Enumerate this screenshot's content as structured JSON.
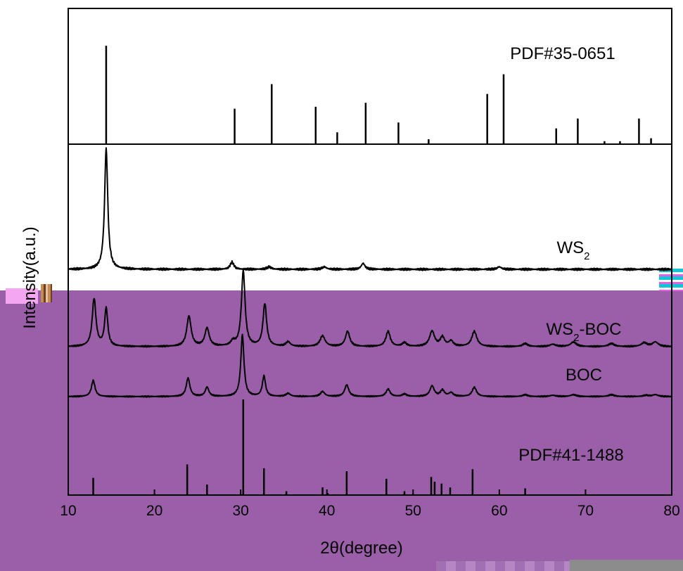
{
  "chart_data": {
    "type": "line",
    "xlabel": "2θ(degree)",
    "ylabel": "Intensity(a.u.)",
    "xlim": [
      10,
      80
    ],
    "xticks": [
      10,
      20,
      30,
      40,
      50,
      60,
      70,
      80
    ],
    "grid": false,
    "legend": "none",
    "panels": [
      {
        "label": "PDF#35-0651",
        "kind": "reference",
        "peaks": [
          [
            14.4,
            1.0
          ],
          [
            29.3,
            0.36
          ],
          [
            33.6,
            0.61
          ],
          [
            38.7,
            0.38
          ],
          [
            41.2,
            0.12
          ],
          [
            44.5,
            0.42
          ],
          [
            48.3,
            0.22
          ],
          [
            51.8,
            0.05
          ],
          [
            58.6,
            0.51
          ],
          [
            60.5,
            0.71
          ],
          [
            66.6,
            0.16
          ],
          [
            69.1,
            0.26
          ],
          [
            72.2,
            0.03
          ],
          [
            74.0,
            0.03
          ],
          [
            76.2,
            0.26
          ],
          [
            77.6,
            0.06
          ]
        ]
      },
      {
        "label": "WS",
        "label_sub": "2",
        "kind": "pattern",
        "peaks": [
          [
            14.4,
            1.0,
            0.22
          ],
          [
            29.0,
            0.06,
            0.25
          ],
          [
            33.3,
            0.02,
            0.3
          ],
          [
            39.7,
            0.02,
            0.3
          ],
          [
            44.2,
            0.05,
            0.25
          ],
          [
            60.0,
            0.02,
            0.3
          ]
        ]
      },
      {
        "label": "WS",
        "label_sub": "2",
        "label_suffix": "-BOC",
        "kind": "pattern",
        "peaks": [
          [
            13.0,
            0.63,
            0.26
          ],
          [
            14.4,
            0.5,
            0.22
          ],
          [
            24.0,
            0.4,
            0.3
          ],
          [
            26.1,
            0.24,
            0.3
          ],
          [
            29.1,
            0.06,
            0.3
          ],
          [
            30.3,
            1.0,
            0.25
          ],
          [
            32.8,
            0.56,
            0.25
          ],
          [
            35.5,
            0.06,
            0.3
          ],
          [
            39.5,
            0.14,
            0.35
          ],
          [
            42.4,
            0.2,
            0.3
          ],
          [
            47.1,
            0.2,
            0.3
          ],
          [
            49.0,
            0.05,
            0.3
          ],
          [
            52.2,
            0.2,
            0.35
          ],
          [
            53.4,
            0.12,
            0.3
          ],
          [
            54.4,
            0.07,
            0.3
          ],
          [
            57.1,
            0.2,
            0.35
          ],
          [
            63.0,
            0.04,
            0.35
          ],
          [
            66.2,
            0.03,
            0.4
          ],
          [
            68.6,
            0.06,
            0.4
          ],
          [
            73.0,
            0.04,
            0.4
          ],
          [
            76.8,
            0.05,
            0.4
          ],
          [
            78.1,
            0.06,
            0.4
          ]
        ]
      },
      {
        "label": "BOC",
        "kind": "pattern",
        "peaks": [
          [
            12.9,
            0.26,
            0.25
          ],
          [
            23.9,
            0.3,
            0.25
          ],
          [
            26.1,
            0.15,
            0.25
          ],
          [
            30.2,
            1.0,
            0.22
          ],
          [
            32.7,
            0.33,
            0.22
          ],
          [
            35.5,
            0.05,
            0.3
          ],
          [
            39.5,
            0.08,
            0.3
          ],
          [
            42.3,
            0.19,
            0.28
          ],
          [
            47.1,
            0.12,
            0.28
          ],
          [
            49.0,
            0.04,
            0.3
          ],
          [
            52.2,
            0.17,
            0.3
          ],
          [
            53.4,
            0.1,
            0.28
          ],
          [
            54.4,
            0.06,
            0.3
          ],
          [
            57.1,
            0.15,
            0.3
          ],
          [
            63.0,
            0.03,
            0.35
          ],
          [
            66.2,
            0.02,
            0.4
          ],
          [
            68.6,
            0.03,
            0.4
          ],
          [
            73.0,
            0.03,
            0.4
          ],
          [
            77.0,
            0.02,
            0.4
          ],
          [
            78.1,
            0.03,
            0.4
          ]
        ]
      },
      {
        "label": "PDF#41-1488",
        "kind": "reference",
        "peaks": [
          [
            12.9,
            0.18
          ],
          [
            23.8,
            0.32
          ],
          [
            26.1,
            0.11
          ],
          [
            30.3,
            1.0
          ],
          [
            32.7,
            0.28
          ],
          [
            35.3,
            0.04
          ],
          [
            39.5,
            0.08
          ],
          [
            40.1,
            0.02
          ],
          [
            42.3,
            0.25
          ],
          [
            46.9,
            0.17
          ],
          [
            49.0,
            0.04
          ],
          [
            52.1,
            0.19
          ],
          [
            52.5,
            0.14
          ],
          [
            53.3,
            0.12
          ],
          [
            54.3,
            0.08
          ],
          [
            56.9,
            0.27
          ],
          [
            63.0,
            0.07
          ]
        ]
      }
    ]
  }
}
